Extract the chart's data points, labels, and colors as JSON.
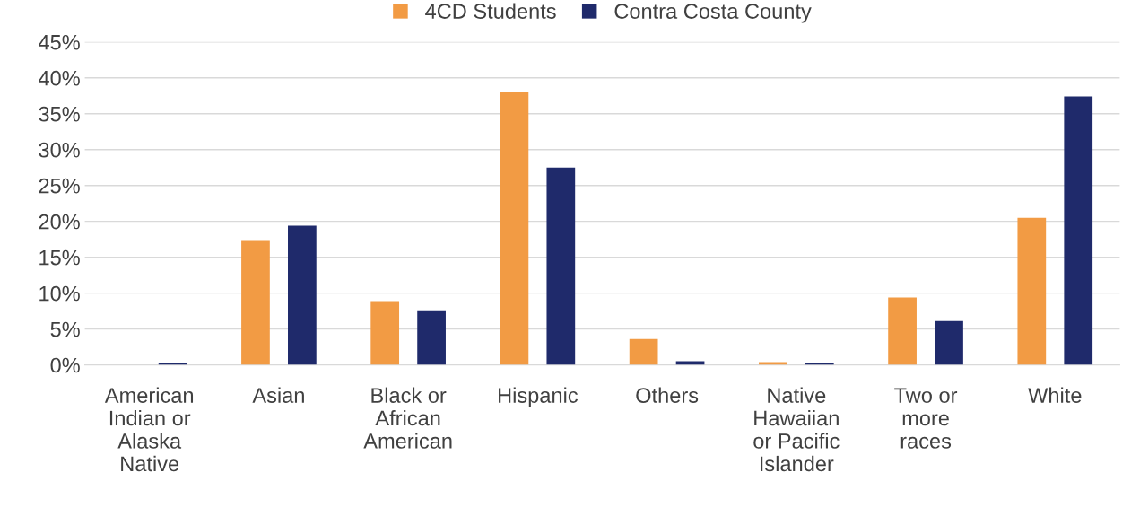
{
  "chart_data": {
    "type": "bar",
    "categories": [
      "American\nIndian or\nAlaska\nNative",
      "Asian",
      "Black or\nAfrican\nAmerican",
      "Hispanic",
      "Others",
      "Native\nHawaiian\nor Pacific\nIslander",
      "Two or\nmore\nraces",
      "White"
    ],
    "series": [
      {
        "name": "4CD Students",
        "color": "#f29b44",
        "values": [
          null,
          17.4,
          8.9,
          38.1,
          3.6,
          0.4,
          9.4,
          20.5
        ]
      },
      {
        "name": "Contra Costa County",
        "color": "#1f2a6b",
        "values": [
          0.2,
          19.4,
          7.6,
          27.5,
          0.5,
          0.3,
          6.1,
          37.4
        ]
      }
    ],
    "ylim": [
      0,
      45
    ],
    "yticks": [
      {
        "value": 0,
        "label": "0%"
      },
      {
        "value": 5,
        "label": "5%"
      },
      {
        "value": 10,
        "label": "10%"
      },
      {
        "value": 15,
        "label": "15%"
      },
      {
        "value": 20,
        "label": "20%"
      },
      {
        "value": 25,
        "label": "25%"
      },
      {
        "value": 30,
        "label": "30%"
      },
      {
        "value": 35,
        "label": "35%"
      },
      {
        "value": 40,
        "label": "40%"
      },
      {
        "value": 45,
        "label": "45%"
      }
    ],
    "grid": "y",
    "legend": "top"
  }
}
